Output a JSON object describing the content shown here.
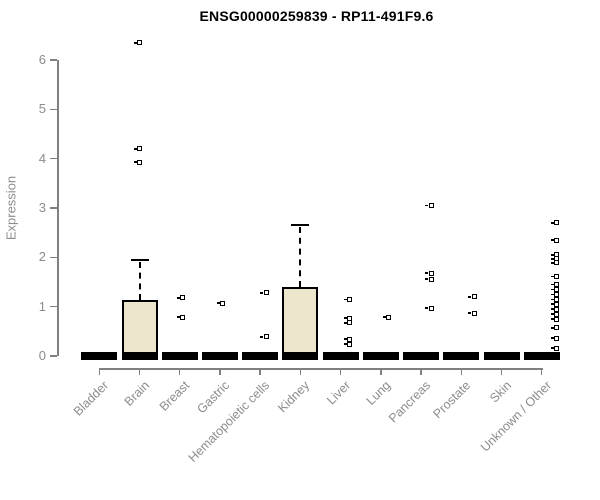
{
  "chart_data": {
    "type": "boxplot",
    "title": "ENSG00000259839 - RP11-491F9.6",
    "ylabel": "Expression",
    "ylim": [
      0,
      6.5
    ],
    "yticks": [
      0,
      1,
      2,
      3,
      4,
      5,
      6
    ],
    "grid": false,
    "legend": "none",
    "box_fill_color": "#ECE7CC",
    "box_border_color": "#000000",
    "axis_color": "#808080",
    "label_color": "#8c8c8c",
    "categories": [
      "Bladder",
      "Brain",
      "Breast",
      "Gastric",
      "Hematopoietic cells",
      "Kidney",
      "Liver",
      "Lung",
      "Pancreas",
      "Prostate",
      "Skin",
      "Unknown / Other"
    ],
    "groups": [
      {
        "label": "Bladder",
        "median": 0,
        "q1": 0,
        "q3": 0,
        "whisker_high": 0,
        "outliers": [],
        "dx": 0
      },
      {
        "label": "Brain",
        "median": 0,
        "q1": 0,
        "q3": 1.13,
        "whisker_high": 1.95,
        "outliers": [
          6.35,
          4.2,
          3.93
        ],
        "dx": 0
      },
      {
        "label": "Breast",
        "median": 0,
        "q1": 0,
        "q3": 0,
        "whisker_high": 0,
        "outliers": [
          1.18,
          0.79
        ],
        "dx": 3
      },
      {
        "label": "Gastric",
        "median": 0,
        "q1": 0,
        "q3": 0,
        "whisker_high": 0,
        "outliers": [
          1.07
        ],
        "dx": 3
      },
      {
        "label": "Hematopoietic cells",
        "median": 0,
        "q1": 0,
        "q3": 0,
        "whisker_high": 0,
        "outliers": [
          1.28,
          0.39
        ],
        "dx": 6
      },
      {
        "label": "Kidney",
        "median": 0,
        "q1": 0,
        "q3": 1.4,
        "whisker_high": 2.65,
        "outliers": [],
        "dx": 0
      },
      {
        "label": "Liver",
        "median": 0,
        "q1": 0,
        "q3": 0,
        "whisker_high": 0,
        "outliers": [
          1.15,
          0.77,
          0.67,
          0.34,
          0.24
        ],
        "dx": 9
      },
      {
        "label": "Lung",
        "median": 0,
        "q1": 0,
        "q3": 0,
        "whisker_high": 0,
        "outliers": [
          0.79
        ],
        "dx": 8
      },
      {
        "label": "Pancreas",
        "median": 0,
        "q1": 0,
        "q3": 0,
        "whisker_high": 0,
        "outliers": [
          3.05,
          1.68,
          1.56,
          0.97
        ],
        "dx": 10
      },
      {
        "label": "Prostate",
        "median": 0,
        "q1": 0,
        "q3": 0,
        "whisker_high": 0,
        "outliers": [
          1.2,
          0.87
        ],
        "dx": 13
      },
      {
        "label": "Skin",
        "median": 0,
        "q1": 0,
        "q3": 0,
        "whisker_high": 0,
        "outliers": [],
        "dx": 0
      },
      {
        "label": "Unknown / Other",
        "median": 0,
        "q1": 0,
        "q3": 0,
        "whisker_high": 0,
        "outliers": [
          2.7,
          2.35,
          2.05,
          1.97,
          1.89,
          1.61,
          1.45,
          1.35,
          1.25,
          1.15,
          1.05,
          0.95,
          0.85,
          0.75,
          0.57,
          0.36,
          0.16
        ],
        "dx": 15
      }
    ]
  }
}
